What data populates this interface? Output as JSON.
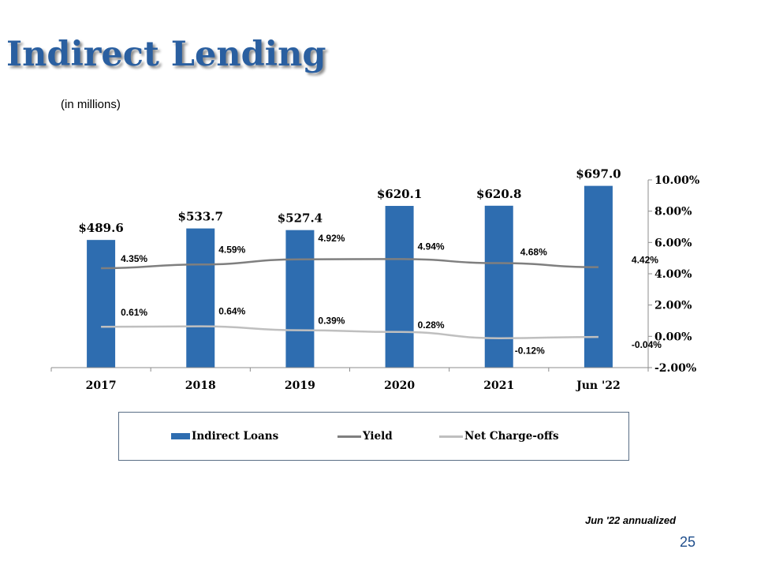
{
  "slide": {
    "title": "Indirect Lending",
    "subtitle": "(in millions)",
    "footnote": "Jun '22 annualized",
    "page_number": "25"
  },
  "colors": {
    "title": "#2a5fa0",
    "bars": "#2e6db0",
    "yield_line": "#7f7f7f",
    "chargeoff_line": "#bfbfbf"
  },
  "chart_data": {
    "type": "bar",
    "categories": [
      "2017",
      "2018",
      "2019",
      "2020",
      "2021",
      "Jun '22"
    ],
    "series": [
      {
        "name": "Indirect Loans",
        "type": "bar",
        "axis": "left",
        "values": [
          489.6,
          533.7,
          527.4,
          620.1,
          620.8,
          697.0
        ],
        "labels": [
          "$489.6",
          "$533.7",
          "$527.4",
          "$620.1",
          "$620.8",
          "$697.0"
        ]
      },
      {
        "name": "Yield",
        "type": "line",
        "axis": "right",
        "values": [
          4.35,
          4.59,
          4.92,
          4.94,
          4.68,
          4.42
        ],
        "labels": [
          "4.35%",
          "4.59%",
          "4.92%",
          "4.94%",
          "4.68%",
          "4.42%"
        ]
      },
      {
        "name": "Net Charge-offs",
        "type": "line",
        "axis": "right",
        "values": [
          0.61,
          0.64,
          0.39,
          0.28,
          -0.12,
          -0.04
        ],
        "labels": [
          "0.61%",
          "0.64%",
          "0.39%",
          "0.28%",
          "-0.12%",
          "-0.04%"
        ]
      }
    ],
    "y2_ticks": [
      "10.00%",
      "8.00%",
      "6.00%",
      "4.00%",
      "2.00%",
      "0.00%",
      "-2.00%"
    ],
    "y2lim": [
      -2,
      10
    ],
    "ylim_left": [
      0,
      720
    ],
    "legend": [
      "Indirect Loans",
      "Yield",
      "Net Charge-offs"
    ],
    "legend_position": "bottom",
    "grid": false
  }
}
